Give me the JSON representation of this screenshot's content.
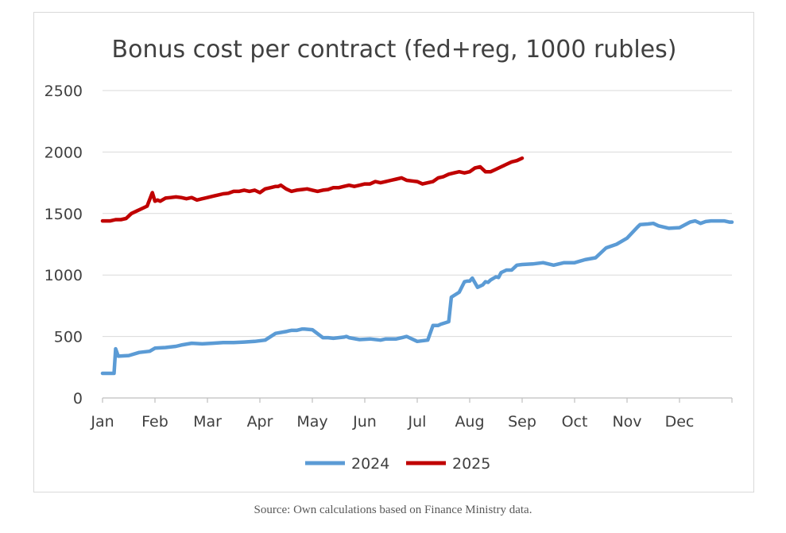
{
  "source_note": "Source: Own calculations based on Finance Ministry data.",
  "colors": {
    "series_2024": "#5b9bd5",
    "series_2025": "#c00000",
    "grid": "#d9d9d9",
    "axis": "#bfbfbf",
    "text": "#404040"
  },
  "chart_data": {
    "type": "line",
    "title": "Bonus cost per contract (fed+reg, 1000 rubles)",
    "xlabel": "",
    "ylabel": "",
    "ylim": [
      0,
      2500
    ],
    "yticks": [
      0,
      500,
      1000,
      1500,
      2000,
      2500
    ],
    "xlim": [
      0,
      12
    ],
    "x_unit": "months since Jan 1",
    "categories": [
      "Jan",
      "Feb",
      "Mar",
      "Apr",
      "May",
      "Jun",
      "Jul",
      "Aug",
      "Sep",
      "Oct",
      "Nov",
      "Dec"
    ],
    "legend": [
      "2024",
      "2025"
    ],
    "legend_position": "bottom-center",
    "series": [
      {
        "name": "2024",
        "x": [
          0.0,
          0.2,
          0.22,
          0.25,
          0.3,
          0.5,
          0.7,
          0.9,
          1.0,
          1.2,
          1.4,
          1.5,
          1.7,
          1.9,
          2.1,
          2.3,
          2.5,
          2.7,
          2.9,
          3.1,
          3.3,
          3.5,
          3.55,
          3.6,
          3.7,
          3.8,
          3.85,
          4.0,
          4.2,
          4.3,
          4.4,
          4.5,
          4.6,
          4.65,
          4.7,
          4.9,
          5.1,
          5.3,
          5.4,
          5.6,
          5.8,
          6.0,
          6.2,
          6.3,
          6.4,
          6.45,
          6.6,
          6.65,
          6.8,
          6.9,
          6.95,
          7.0,
          7.05,
          7.15,
          7.25,
          7.3,
          7.35,
          7.4,
          7.5,
          7.55,
          7.6,
          7.7,
          7.8,
          7.9,
          8.0,
          8.2,
          8.4,
          8.6,
          8.8,
          9.0,
          9.2,
          9.4,
          9.6,
          9.8,
          10.0,
          10.2,
          10.25,
          10.4,
          10.5,
          10.6,
          10.8,
          11.0,
          11.2,
          11.3,
          11.4,
          11.5,
          11.6,
          11.75,
          11.85,
          11.95,
          12.0
        ],
        "values": [
          200,
          200,
          200,
          400,
          340,
          345,
          370,
          380,
          405,
          410,
          420,
          430,
          445,
          440,
          445,
          450,
          450,
          455,
          460,
          470,
          525,
          540,
          545,
          550,
          550,
          560,
          560,
          555,
          490,
          490,
          485,
          490,
          495,
          500,
          490,
          475,
          480,
          470,
          480,
          480,
          500,
          460,
          470,
          590,
          590,
          600,
          620,
          820,
          860,
          945,
          950,
          950,
          975,
          900,
          920,
          945,
          940,
          960,
          985,
          980,
          1020,
          1040,
          1040,
          1080,
          1085,
          1090,
          1100,
          1080,
          1100,
          1100,
          1125,
          1140,
          1220,
          1250,
          1300,
          1390,
          1410,
          1415,
          1420,
          1400,
          1380,
          1385,
          1430,
          1440,
          1420,
          1435,
          1440,
          1440,
          1440,
          1430,
          1430
        ]
      },
      {
        "name": "2025",
        "x": [
          0.0,
          0.15,
          0.25,
          0.35,
          0.45,
          0.55,
          0.65,
          0.75,
          0.85,
          0.95,
          1.0,
          1.05,
          1.1,
          1.2,
          1.3,
          1.4,
          1.5,
          1.6,
          1.7,
          1.8,
          1.9,
          2.0,
          2.1,
          2.2,
          2.3,
          2.4,
          2.5,
          2.6,
          2.7,
          2.8,
          2.9,
          3.0,
          3.1,
          3.2,
          3.3,
          3.35,
          3.4,
          3.5,
          3.6,
          3.7,
          3.8,
          3.9,
          4.0,
          4.1,
          4.2,
          4.3,
          4.4,
          4.5,
          4.6,
          4.7,
          4.8,
          4.9,
          5.0,
          5.1,
          5.2,
          5.3,
          5.4,
          5.5,
          5.6,
          5.7,
          5.8,
          5.9,
          6.0,
          6.1,
          6.2,
          6.3,
          6.4,
          6.5,
          6.6,
          6.7,
          6.8,
          6.9,
          7.0,
          7.1,
          7.2,
          7.3,
          7.4,
          7.5,
          7.6,
          7.7,
          7.8,
          7.9,
          8.0
        ],
        "values": [
          1440,
          1440,
          1450,
          1450,
          1460,
          1500,
          1520,
          1540,
          1560,
          1670,
          1600,
          1610,
          1600,
          1625,
          1630,
          1635,
          1630,
          1620,
          1630,
          1610,
          1620,
          1630,
          1640,
          1650,
          1660,
          1665,
          1680,
          1680,
          1690,
          1680,
          1690,
          1670,
          1700,
          1710,
          1720,
          1720,
          1730,
          1700,
          1680,
          1690,
          1695,
          1700,
          1690,
          1680,
          1690,
          1695,
          1710,
          1710,
          1720,
          1730,
          1720,
          1730,
          1740,
          1740,
          1760,
          1750,
          1760,
          1770,
          1780,
          1790,
          1770,
          1765,
          1760,
          1740,
          1750,
          1760,
          1790,
          1800,
          1820,
          1830,
          1840,
          1830,
          1840,
          1870,
          1880,
          1840,
          1840,
          1860,
          1880,
          1900,
          1920,
          1930,
          1950
        ]
      }
    ]
  }
}
